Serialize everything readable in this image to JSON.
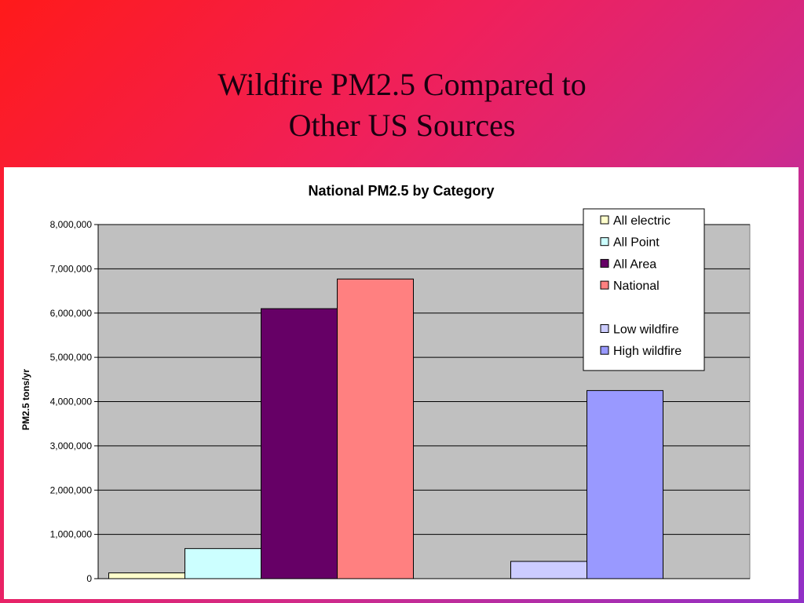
{
  "slide": {
    "title_line1": "Wildfire PM2.5 Compared to",
    "title_line2": "Other US Sources"
  },
  "colors": {
    "plot_background": "#c0c0c0",
    "all_electric": "#ffffcc",
    "all_point": "#ccffff",
    "all_area": "#660066",
    "national": "#ff8080",
    "low_wildfire": "#ccccff",
    "high_wildfire": "#9999ff"
  },
  "chart_data": {
    "type": "bar",
    "title": "National PM2.5 by Category",
    "ylabel": "PM2.5 tons/yr",
    "xlabel": "",
    "ylim": [
      0,
      8000000
    ],
    "yticks": [
      "0",
      "1,000,000",
      "2,000,000",
      "3,000,000",
      "4,000,000",
      "5,000,000",
      "6,000,000",
      "7,000,000",
      "8,000,000"
    ],
    "grid": true,
    "legend_position": "top-right",
    "groups": [
      {
        "series": [
          {
            "name": "All electric",
            "value": 130000,
            "color": "#ffffcc"
          },
          {
            "name": "All Point",
            "value": 680000,
            "color": "#ccffff"
          },
          {
            "name": "All Area",
            "value": 6100000,
            "color": "#660066"
          },
          {
            "name": "National",
            "value": 6770000,
            "color": "#ff8080"
          }
        ]
      },
      {
        "series": [
          {
            "name": "Low wildfire",
            "value": 390000,
            "color": "#ccccff"
          },
          {
            "name": "High wildfire",
            "value": 4250000,
            "color": "#9999ff"
          }
        ]
      }
    ],
    "legend": [
      {
        "name": "All electric",
        "color": "#ffffcc"
      },
      {
        "name": "All Point",
        "color": "#ccffff"
      },
      {
        "name": "All Area",
        "color": "#660066"
      },
      {
        "name": "National",
        "color": "#ff8080"
      },
      {
        "name": "",
        "color": ""
      },
      {
        "name": "Low wildfire",
        "color": "#ccccff"
      },
      {
        "name": "High wildfire",
        "color": "#9999ff"
      }
    ]
  }
}
